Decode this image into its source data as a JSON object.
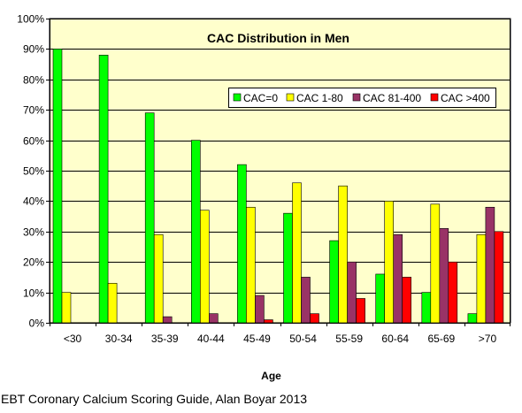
{
  "chart_data": {
    "type": "bar",
    "title": "CAC Distribution in Men",
    "xlabel": "Age",
    "ylabel": "",
    "categories": [
      "<30",
      "30-34",
      "35-39",
      "40-44",
      "45-49",
      "50-54",
      "55-59",
      "60-64",
      "65-69",
      ">70"
    ],
    "series": [
      {
        "name": "CAC=0",
        "color": "#00ff00",
        "values": [
          90,
          88,
          69,
          60,
          52,
          36,
          27,
          16,
          10,
          3
        ]
      },
      {
        "name": "CAC 1-80",
        "color": "#ffff00",
        "values": [
          10,
          13,
          29,
          37,
          38,
          46,
          45,
          40,
          39,
          29
        ]
      },
      {
        "name": "CAC 81-400",
        "color": "#993366",
        "values": [
          0,
          0,
          2,
          3,
          9,
          15,
          20,
          29,
          31,
          38
        ]
      },
      {
        "name": "CAC >400",
        "color": "#ff0000",
        "values": [
          0,
          0,
          0,
          0,
          1,
          3,
          8,
          15,
          20,
          30
        ]
      }
    ],
    "yticks": [
      "0%",
      "10%",
      "20%",
      "30%",
      "40%",
      "50%",
      "60%",
      "70%",
      "80%",
      "90%",
      "100%"
    ],
    "ylim": [
      0,
      100
    ],
    "y_unit": "%",
    "grid": true,
    "legend": "top-right",
    "plot_background": "#ffffcc"
  },
  "source": "EBT Coronary Calcium Scoring Guide, Alan Boyar 2013"
}
